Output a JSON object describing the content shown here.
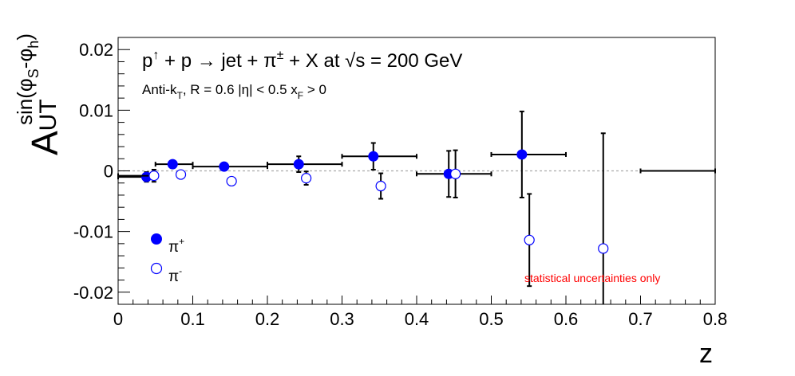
{
  "chart_data": {
    "type": "scatter",
    "title_parts": {
      "p": "p",
      "arrow_up": "↑",
      "plus_p_to": " + p → jet + ",
      "pi": "π",
      "pm": "±",
      "rest": " + X at  √s = 200 GeV"
    },
    "subtitle_parts": {
      "antik": "Anti-k",
      "T": "T",
      "R": ", R = 0.6   |η| < 0.5   x",
      "F": "F",
      "gt": " > 0"
    },
    "ylabel_parts": {
      "A": "A",
      "UT": "UT",
      "sup": "sin(φ",
      "S": "S",
      "mid": "-φ",
      "h": "h",
      "close": ")"
    },
    "xlabel": "z",
    "xlim": [
      0,
      0.8
    ],
    "ylim": [
      -0.022,
      0.022
    ],
    "x_ticks": [
      "0",
      "0.1",
      "0.2",
      "0.3",
      "0.4",
      "0.5",
      "0.6",
      "0.7",
      "0.8"
    ],
    "x_tick_values": [
      0,
      0.1,
      0.2,
      0.3,
      0.4,
      0.5,
      0.6,
      0.7,
      0.8
    ],
    "y_ticks": [
      "-0.02",
      "-0.01",
      "0",
      "0.01",
      "0.02"
    ],
    "y_tick_values": [
      -0.02,
      -0.01,
      0,
      0.01,
      0.02
    ],
    "zero_line": true,
    "legend": {
      "position": "bottom-left"
    },
    "annotation": "statistical uncertainties only",
    "colors": {
      "pi_plus": "#0000ff",
      "pi_minus": "#0000ff",
      "annotation": "#ff0000",
      "zero_line": "#aaaaaa"
    },
    "series": [
      {
        "name": "π+",
        "label_base": "π",
        "label_sup": "+",
        "marker": "filled-circle",
        "points": [
          {
            "x": 0.038,
            "y": -0.001,
            "xlo": 0.0,
            "xhi": 0.05,
            "err": 0.0008
          },
          {
            "x": 0.073,
            "y": 0.0011,
            "xlo": 0.05,
            "xhi": 0.1,
            "err": 0.0005
          },
          {
            "x": 0.142,
            "y": 0.0007,
            "xlo": 0.1,
            "xhi": 0.2,
            "err": 0.0006
          },
          {
            "x": 0.242,
            "y": 0.0011,
            "xlo": 0.2,
            "xhi": 0.3,
            "err": 0.0013
          },
          {
            "x": 0.342,
            "y": 0.0024,
            "xlo": 0.3,
            "xhi": 0.4,
            "err": 0.0022
          },
          {
            "x": 0.443,
            "y": -0.0005,
            "xlo": 0.4,
            "xhi": 0.5,
            "err": 0.0038
          },
          {
            "x": 0.541,
            "y": 0.0027,
            "xlo": 0.5,
            "xhi": 0.6,
            "err": 0.0071
          },
          {
            "x": 0.75,
            "y": 0.0,
            "xlo": 0.7,
            "xhi": 0.8,
            "err": 0.0,
            "no_marker": true
          }
        ]
      },
      {
        "name": "π−",
        "label_base": "π",
        "label_sup": "-",
        "marker": "open-circle",
        "points": [
          {
            "x": 0.048,
            "y": -0.0008,
            "xlo": 0.0,
            "xhi": 0.05,
            "err": 0.001
          },
          {
            "x": 0.084,
            "y": -0.0006,
            "err": 0.0
          },
          {
            "x": 0.152,
            "y": -0.0017,
            "err": 0.0
          },
          {
            "x": 0.252,
            "y": -0.0012,
            "err": 0.0011
          },
          {
            "x": 0.352,
            "y": -0.0025,
            "err": 0.0021
          },
          {
            "x": 0.452,
            "y": -0.0005,
            "err": 0.0039
          },
          {
            "x": 0.551,
            "y": -0.0114,
            "err": 0.0076
          },
          {
            "x": 0.65,
            "y": -0.0128,
            "err": 0.019
          }
        ]
      }
    ]
  }
}
